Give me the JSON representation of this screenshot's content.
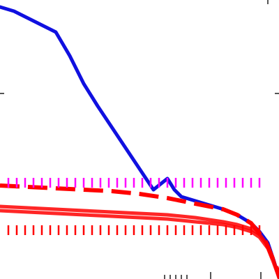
{
  "chart_data": {
    "type": "line",
    "title": "",
    "xlabel": "",
    "ylabel": "",
    "xlim": [
      0,
      1
    ],
    "ylim": [
      0,
      1
    ],
    "grid": false,
    "legend": "none",
    "series": [
      {
        "color": "#1010e0",
        "style": "solid",
        "x": [
          0.0,
          0.05,
          0.1,
          0.15,
          0.2,
          0.25,
          0.3,
          0.35,
          0.4,
          0.45,
          0.5,
          0.55,
          0.6,
          0.625,
          0.65,
          0.7,
          0.75,
          0.8,
          0.85,
          0.9,
          0.93,
          0.96,
          0.98,
          1.0
        ],
        "values": [
          0.975,
          0.96,
          0.935,
          0.91,
          0.885,
          0.8,
          0.7,
          0.62,
          0.545,
          0.47,
          0.395,
          0.32,
          0.36,
          0.32,
          0.295,
          0.28,
          0.265,
          0.25,
          0.23,
          0.2,
          0.17,
          0.13,
          0.07,
          0.005
        ]
      },
      {
        "color": "#ff0000",
        "style": "solid",
        "x": [
          0.0,
          0.1,
          0.2,
          0.3,
          0.4,
          0.5,
          0.6,
          0.7,
          0.8,
          0.85,
          0.9,
          0.93,
          0.96,
          0.98,
          1.0
        ],
        "values": [
          0.26,
          0.255,
          0.25,
          0.245,
          0.24,
          0.235,
          0.23,
          0.22,
          0.205,
          0.195,
          0.18,
          0.16,
          0.12,
          0.07,
          0.005
        ]
      },
      {
        "color": "#ff0000",
        "style": "solid",
        "x": [
          0.0,
          0.1,
          0.2,
          0.3,
          0.4,
          0.5,
          0.6,
          0.7,
          0.8,
          0.85,
          0.9,
          0.93,
          0.96,
          0.98,
          1.0
        ],
        "values": [
          0.245,
          0.24,
          0.235,
          0.23,
          0.225,
          0.22,
          0.215,
          0.205,
          0.195,
          0.185,
          0.17,
          0.15,
          0.11,
          0.06,
          0.005
        ]
      },
      {
        "color": "#ff0000",
        "style": "dashed",
        "x": [
          0.0,
          0.1,
          0.2,
          0.3,
          0.4,
          0.5,
          0.6,
          0.7,
          0.8,
          0.85,
          0.9,
          0.95,
          1.0
        ],
        "values": [
          0.335,
          0.33,
          0.325,
          0.32,
          0.315,
          0.305,
          0.29,
          0.27,
          0.25,
          0.23,
          0.2,
          0.14,
          0.02
        ]
      },
      {
        "color": "#ff00ff",
        "style": "dotted",
        "x": [
          0.0,
          0.95
        ],
        "values": [
          0.345,
          0.345
        ]
      },
      {
        "color": "#ff0000",
        "style": "dotted",
        "x": [
          0.0,
          0.95
        ],
        "values": [
          0.175,
          0.175
        ]
      }
    ]
  }
}
